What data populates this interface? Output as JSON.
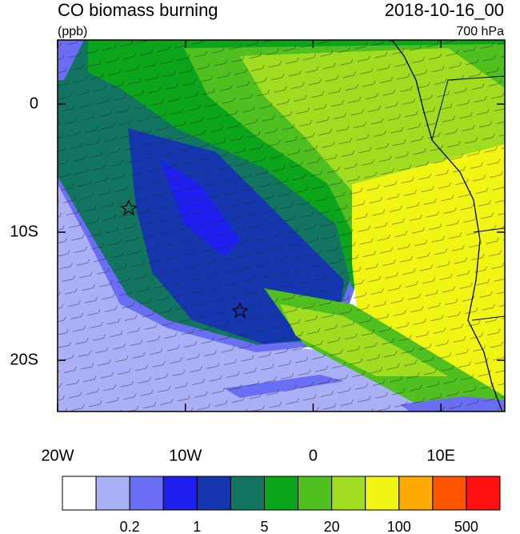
{
  "map": {
    "title": "CO biomass burning",
    "units": "(ppb)",
    "date": "2018-10-16_00",
    "level": "700 hPa",
    "xlim": [
      -20,
      15
    ],
    "ylim": [
      -24,
      5
    ],
    "xticks": [
      {
        "value": -20,
        "label": "20W"
      },
      {
        "value": -10,
        "label": "10W"
      },
      0,
      {
        "value": 10,
        "label": "10E"
      }
    ],
    "yticks": [
      0,
      {
        "value": -10,
        "label": "10S"
      },
      {
        "value": -20,
        "label": "20S"
      }
    ],
    "colorbar": {
      "colors": [
        "#ffffff",
        "#aab0f5",
        "#6a6ef5",
        "#1f1ff0",
        "#1437b0",
        "#127560",
        "#0aa51a",
        "#50c020",
        "#a0dc20",
        "#f0f514",
        "#ffaa00",
        "#ff5500",
        "#ff1010"
      ],
      "labels": [
        0.2,
        1,
        5,
        20,
        100,
        500
      ]
    }
  }
}
